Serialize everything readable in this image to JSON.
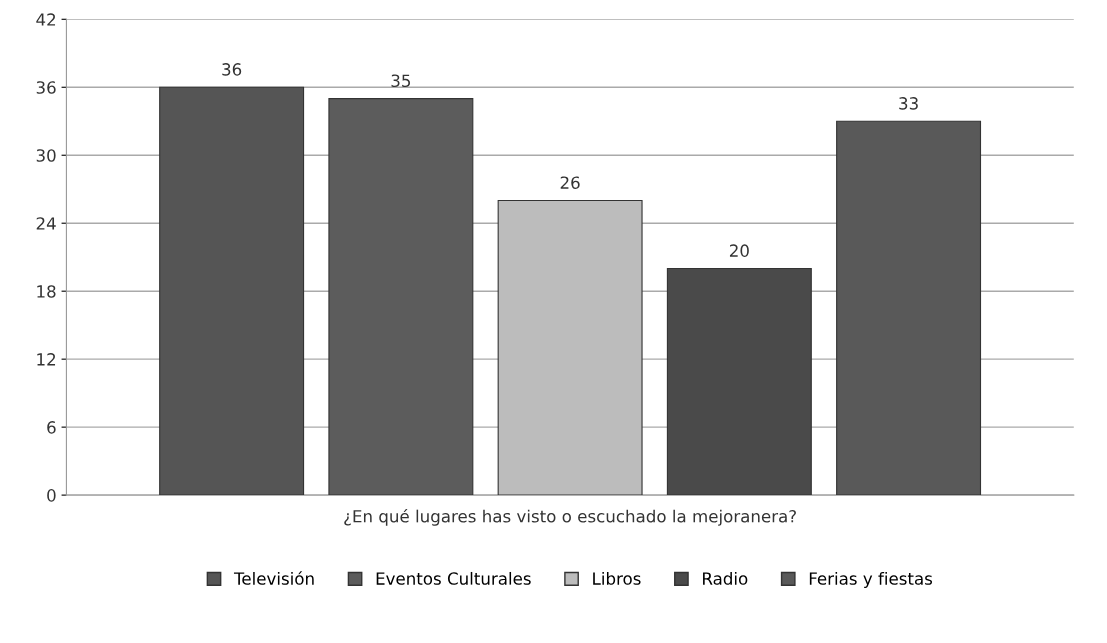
{
  "chart_data": {
    "type": "bar",
    "categories": [
      "¿En qué lugares has visto o escuchado la mejoranera?"
    ],
    "series": [
      {
        "name": "Televisión",
        "color": "#555555",
        "values": [
          36
        ]
      },
      {
        "name": "Eventos Culturales",
        "color": "#5c5c5c",
        "values": [
          35
        ]
      },
      {
        "name": "Libros",
        "color": "#bcbcbc",
        "values": [
          26
        ]
      },
      {
        "name": "Radio",
        "color": "#4a4a4a",
        "values": [
          20
        ]
      },
      {
        "name": "Ferias y fiestas",
        "color": "#595959",
        "values": [
          33
        ]
      }
    ],
    "ylim": [
      0,
      42
    ],
    "yticks": [
      0,
      6,
      12,
      18,
      24,
      30,
      36,
      42
    ],
    "grid": "y",
    "legend": "bottom",
    "data_labels": true
  }
}
